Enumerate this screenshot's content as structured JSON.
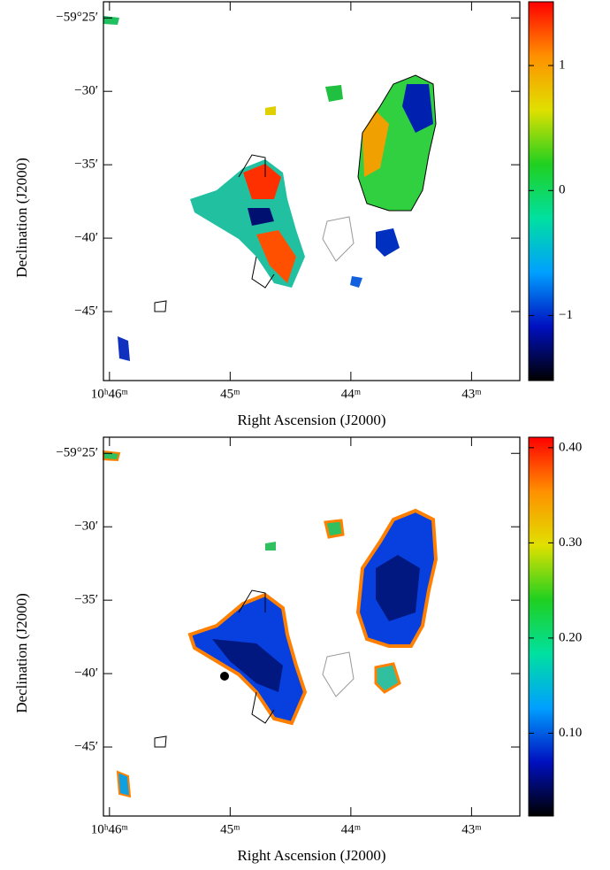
{
  "chart_data": [
    {
      "type": "image",
      "xlabel": "Right Ascension (J2000)",
      "ylabel": "Declination (J2000)",
      "xlim": [
        46.05,
        42.6
      ],
      "xticks": [
        {
          "value": 46,
          "label": "10ʰ46ᵐ"
        },
        {
          "value": 45,
          "label": "45ᵐ"
        },
        {
          "value": 44,
          "label": "44ᵐ"
        },
        {
          "value": 43,
          "label": "43ᵐ"
        }
      ],
      "ylim": [
        -49.7,
        -23.9
      ],
      "yticks": [
        {
          "value": -25,
          "label": "−59°25′"
        },
        {
          "value": -30,
          "label": "−30′"
        },
        {
          "value": -35,
          "label": "−35′"
        },
        {
          "value": -40,
          "label": "−40′"
        },
        {
          "value": -45,
          "label": "−45′"
        }
      ],
      "clim": [
        -1.52,
        1.51
      ],
      "cticks": [
        1,
        0,
        {
          "value": -1,
          "label": "−1"
        }
      ],
      "colormap": [
        "#000000",
        "#0010c0",
        "#00a0ff",
        "#00e0a0",
        "#20d020",
        "#e0e000",
        "#ff9000",
        "#ff0000"
      ]
    },
    {
      "type": "image",
      "xlabel": "Right Ascension (J2000)",
      "ylabel": "Declination (J2000)",
      "xlim": [
        46.05,
        42.6
      ],
      "xticks": [
        {
          "value": 46,
          "label": "10ʰ46ᵐ"
        },
        {
          "value": 45,
          "label": "45ᵐ"
        },
        {
          "value": 44,
          "label": "44ᵐ"
        },
        {
          "value": 43,
          "label": "43ᵐ"
        }
      ],
      "ylim": [
        -49.7,
        -23.9
      ],
      "yticks": [
        {
          "value": -25,
          "label": "−59°25′"
        },
        {
          "value": -30,
          "label": "−30′"
        },
        {
          "value": -35,
          "label": "−35′"
        },
        {
          "value": -40,
          "label": "−40′"
        },
        {
          "value": -45,
          "label": "−45′"
        }
      ],
      "clim": [
        0.013,
        0.411
      ],
      "cticks": [
        {
          "value": 0.4,
          "label": "0.40"
        },
        {
          "value": 0.3,
          "label": "0.30"
        },
        {
          "value": 0.2,
          "label": "0.20"
        },
        {
          "value": 0.1,
          "label": "0.10"
        }
      ],
      "colormap": [
        "#000000",
        "#0010c0",
        "#00a0ff",
        "#00e0a0",
        "#20d020",
        "#e0e000",
        "#ff9000",
        "#ff0000"
      ]
    }
  ]
}
